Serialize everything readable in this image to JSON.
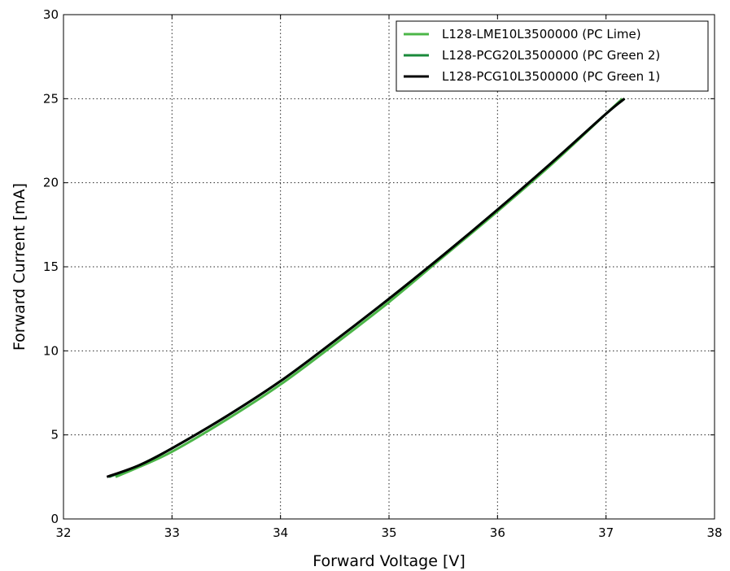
{
  "chart_data": {
    "type": "line",
    "title": "",
    "xlabel": "Forward Voltage [V]",
    "ylabel": "Forward Current [mA]",
    "xlim": [
      32,
      38
    ],
    "ylim": [
      0,
      30
    ],
    "xticks": [
      32,
      33,
      34,
      35,
      36,
      37,
      38
    ],
    "yticks": [
      0,
      5,
      10,
      15,
      20,
      25,
      30
    ],
    "grid": true,
    "legend_position": "top-right",
    "series": [
      {
        "name": "L128-LME10L3500000 (PC Lime)",
        "color": "#4cb648",
        "line_width": 3,
        "x": [
          32.48,
          32.7,
          33.0,
          33.5,
          34.0,
          34.5,
          35.0,
          35.5,
          36.0,
          36.5,
          37.0,
          37.15
        ],
        "y": [
          2.5,
          3.1,
          4.0,
          5.9,
          8.0,
          10.4,
          12.9,
          15.6,
          18.3,
          21.1,
          24.1,
          25.0
        ]
      },
      {
        "name": "L128-PCG20L3500000 (PC Green 2)",
        "color": "#1a8a3a",
        "line_width": 3,
        "x": [
          32.42,
          32.7,
          33.0,
          33.5,
          34.0,
          34.5,
          35.0,
          35.5,
          36.0,
          36.5,
          37.0,
          37.17
        ],
        "y": [
          2.5,
          3.2,
          4.2,
          6.1,
          8.2,
          10.6,
          13.1,
          15.7,
          18.4,
          21.2,
          24.1,
          25.0
        ]
      },
      {
        "name": "L128-PCG10L3500000 (PC Green 1)",
        "color": "#000000",
        "line_width": 3,
        "x": [
          32.4,
          32.7,
          33.0,
          33.5,
          34.0,
          34.5,
          35.0,
          35.5,
          36.0,
          36.5,
          37.0,
          37.17
        ],
        "y": [
          2.5,
          3.2,
          4.2,
          6.1,
          8.2,
          10.6,
          13.1,
          15.7,
          18.4,
          21.2,
          24.1,
          25.0
        ]
      }
    ]
  }
}
